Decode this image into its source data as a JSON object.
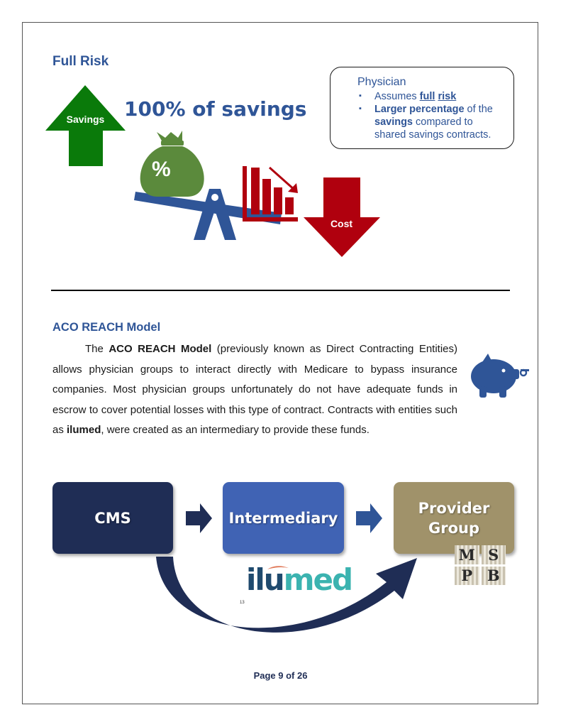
{
  "full_risk": {
    "title": "Full Risk",
    "headline": "100% of savings",
    "savings_arrow_label": "Savings",
    "cost_arrow_label": "Cost",
    "percent_symbol": "%"
  },
  "physician_box": {
    "title": "Physician",
    "bullet1_pre": "Assumes ",
    "bullet1_b1": "full",
    "bullet1_b2": "risk",
    "bullet2_b1": "Larger percentage",
    "bullet2_t1": " of the ",
    "bullet2_b2": "savings",
    "bullet2_t2": " compared to shared savings contracts."
  },
  "aco": {
    "title": "ACO REACH Model",
    "p_t1": "The ",
    "p_b1": "ACO REACH Model",
    "p_t2": " (previously known as Direct Contracting Entities) allows physician groups to interact directly with Medicare to bypass insurance companies. Most physician groups unfortunately do not have adequate funds in escrow to cover potential losses with this type of contract. Contracts with entities such as ",
    "p_b2": "ilumed",
    "p_t3": ", were created as an intermediary to provide these funds."
  },
  "flow": {
    "box1": "CMS",
    "box2": "Intermediary",
    "box3_line1": "Provider",
    "box3_line2": "Group",
    "logo_il": "ilu",
    "logo_med": "med",
    "footnote": "13",
    "mspb_letters": [
      "M",
      "S",
      "P",
      "B"
    ]
  },
  "footer": {
    "page": "Page 9 of 26"
  },
  "colors": {
    "navy": "#1f2d55",
    "blue": "#4063b4",
    "tan": "#a0926a",
    "green": "#0a7a0a",
    "money_bag": "#5b8a3c",
    "red": "#b0000e",
    "title_blue": "#2f5597"
  }
}
